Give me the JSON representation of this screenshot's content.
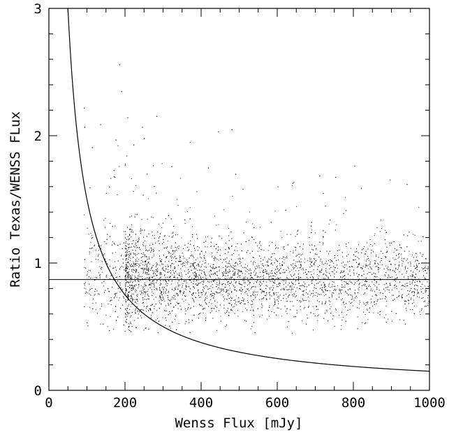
{
  "chart_data": {
    "type": "scatter",
    "xlabel": "Wenss Flux [mJy]",
    "ylabel": "Ratio Texas/WENSS FLux",
    "xlim": [
      0,
      1000
    ],
    "ylim": [
      0,
      3
    ],
    "x_ticks": [
      0,
      200,
      400,
      600,
      800,
      1000
    ],
    "y_ticks": [
      0,
      1,
      2,
      3
    ],
    "x_tick_labels": [
      "0",
      "200",
      "400",
      "600",
      "800",
      "1000"
    ],
    "y_tick_labels": [
      "0",
      "1",
      "2",
      "3"
    ],
    "grid": false,
    "series": [
      {
        "kind": "points",
        "description_of_cloud": "dense cloud of several thousand sources",
        "approx_count": 5000,
        "x_range": [
          90,
          1000
        ],
        "y_center": 0.87,
        "y_spread": 0.15,
        "color": "#000000"
      },
      {
        "kind": "line",
        "equation": "y = 0.87",
        "y": 0.87,
        "color": "#000000"
      },
      {
        "kind": "curve",
        "equation": "y = 150 / x",
        "coefficient": 150,
        "x_range": [
          50,
          1000
        ],
        "color": "#000000"
      }
    ],
    "outliers": [
      [
        185,
        2.56
      ],
      [
        190,
        2.35
      ],
      [
        175,
        1.97
      ],
      [
        92,
        2.22
      ],
      [
        93,
        2.07
      ],
      [
        113,
        1.91
      ],
      [
        135,
        2.09
      ],
      [
        245,
        2.07
      ],
      [
        222,
        1.93
      ],
      [
        200,
        1.78
      ],
      [
        418,
        1.75
      ],
      [
        490,
        1.7
      ],
      [
        322,
        1.76
      ],
      [
        640,
        1.63
      ],
      [
        720,
        1.55
      ],
      [
        480,
        2.05
      ],
      [
        940,
        1.62
      ],
      [
        820,
        1.59
      ],
      [
        170,
        1.73
      ],
      [
        150,
        1.55
      ]
    ]
  }
}
